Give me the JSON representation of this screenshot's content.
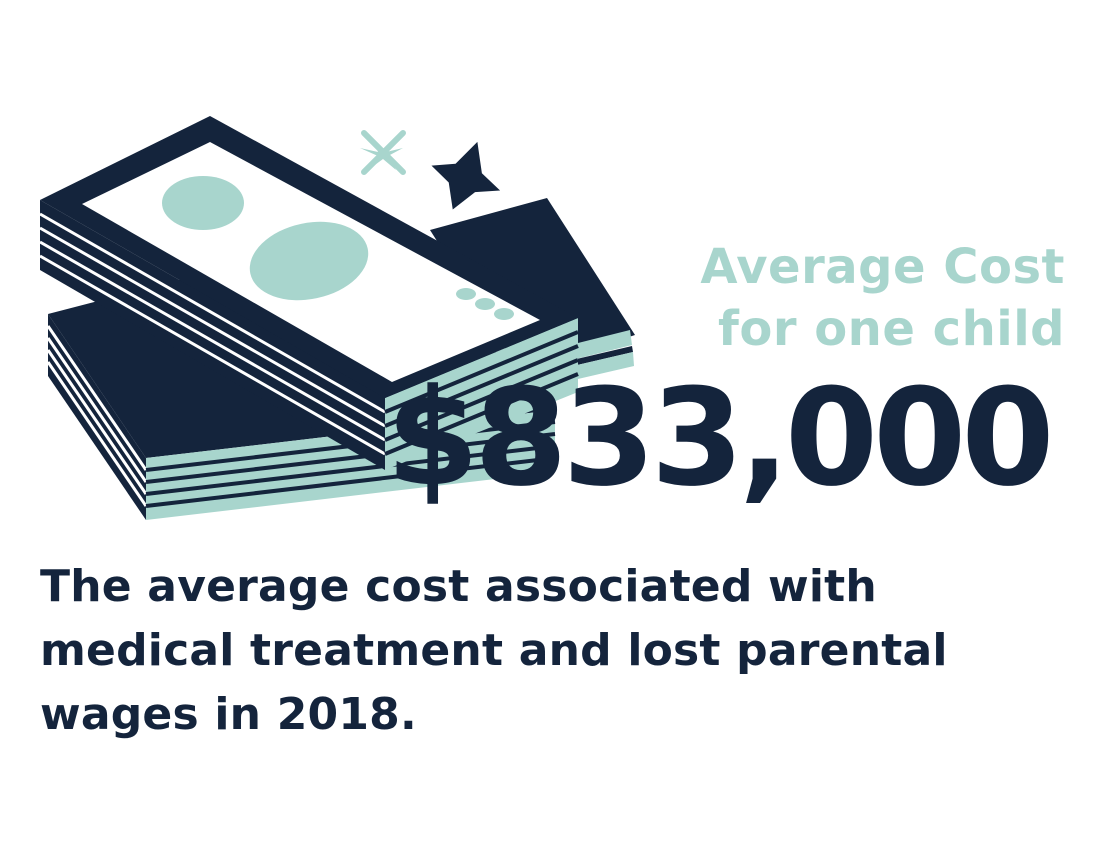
{
  "colors": {
    "navy": "#14243c",
    "mint": "#a8d5cd",
    "background": "#ffffff"
  },
  "icons": {
    "illustration": "money-stack-icon",
    "sparkle_small": "sparkle-icon",
    "sparkle_large": "sparkle-icon"
  },
  "headline": {
    "label_line1": "Average Cost",
    "label_line2": "for one child",
    "amount": "$833,000"
  },
  "description": {
    "line1": "The average cost associated with",
    "line2": "medical treatment and lost parental",
    "line3": "wages in 2018."
  }
}
